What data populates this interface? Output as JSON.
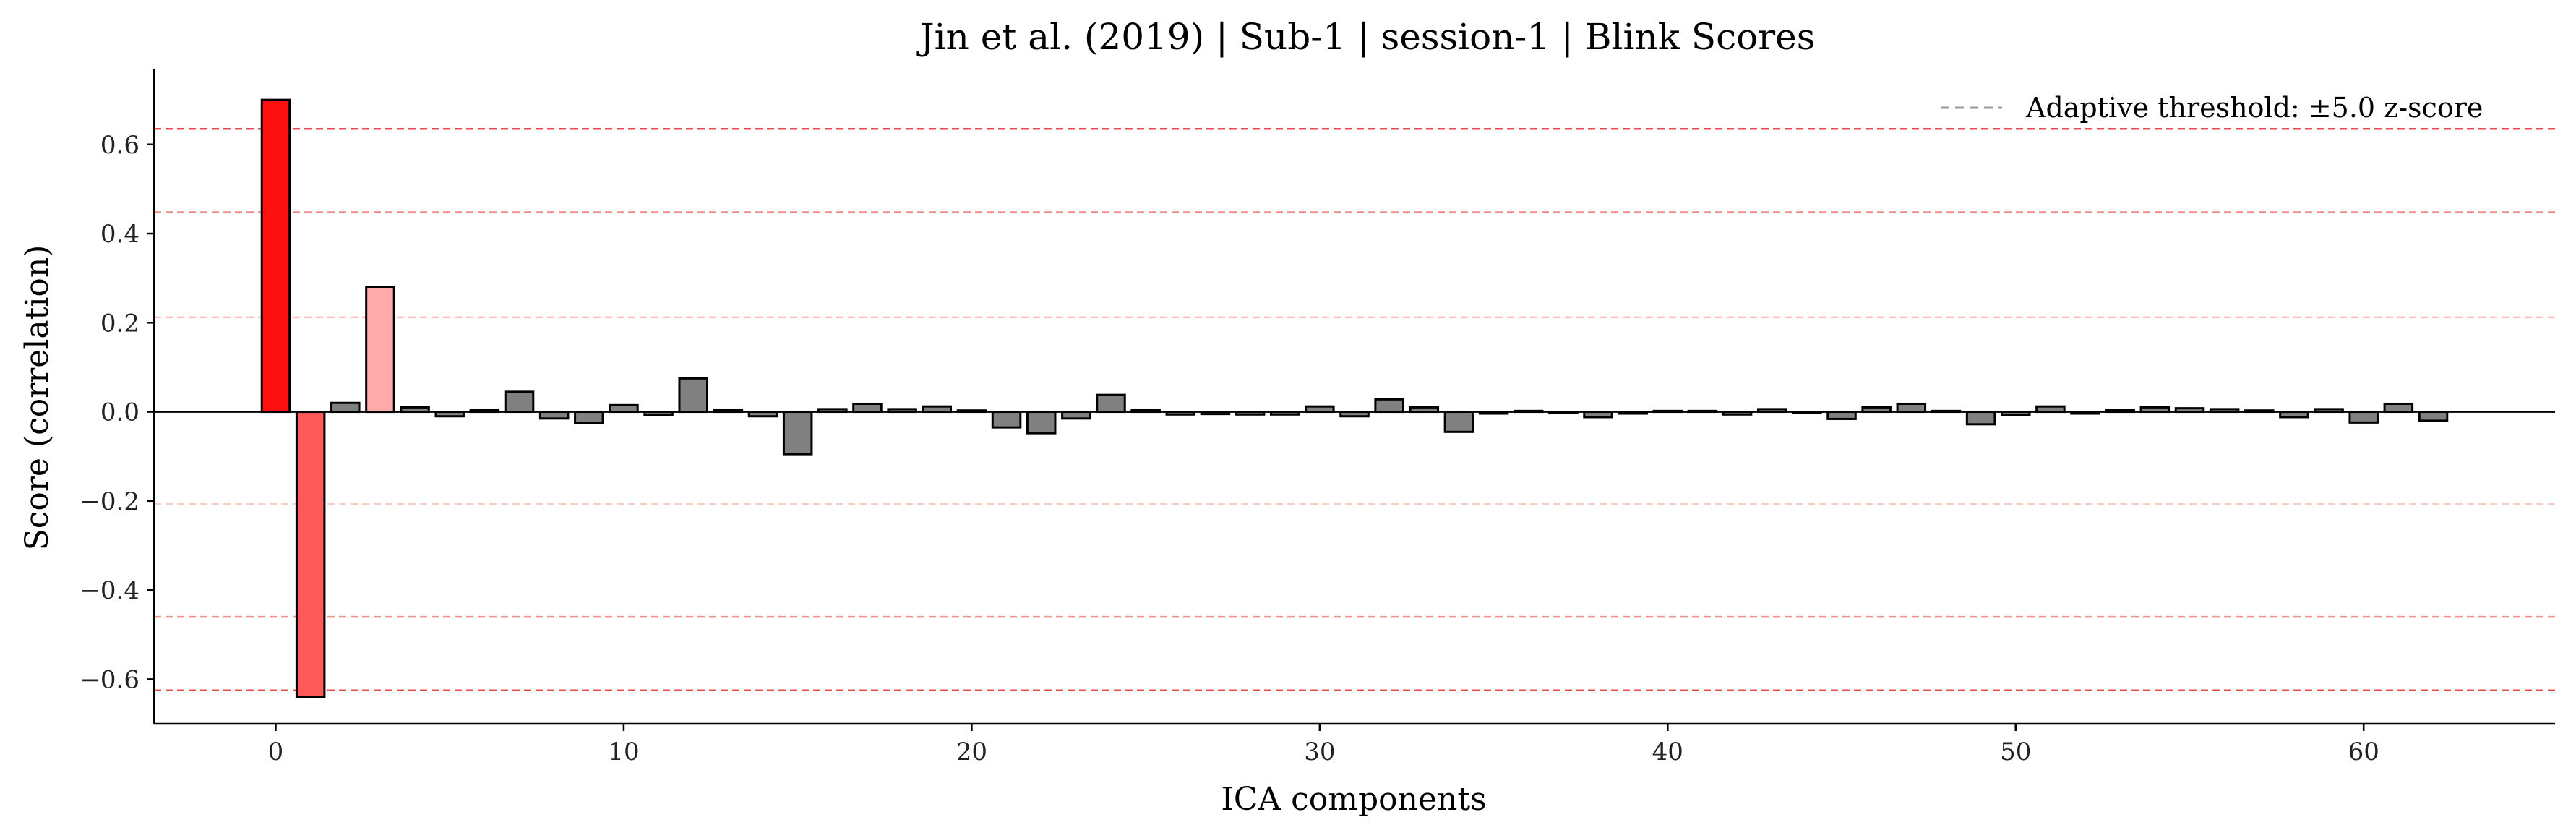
{
  "chart_data": {
    "type": "bar",
    "title": "Jin et al. (2019) | Sub-1 | session-1 | Blink Scores",
    "xlabel": "ICA components",
    "ylabel": "Score (correlation)",
    "xlim": [
      -3.5,
      65.5
    ],
    "ylim": [
      -0.7,
      0.77
    ],
    "xticks": [
      0,
      10,
      20,
      30,
      40,
      50,
      60
    ],
    "yticks": [
      -0.6,
      -0.4,
      -0.2,
      0.0,
      0.2,
      0.4,
      0.6
    ],
    "ytick_labels": [
      "−0.6",
      "−0.4",
      "−0.2",
      "0.0",
      "0.2",
      "0.4",
      "0.6"
    ],
    "x": [
      0,
      1,
      2,
      3,
      4,
      5,
      6,
      7,
      8,
      9,
      10,
      11,
      12,
      13,
      14,
      15,
      16,
      17,
      18,
      19,
      20,
      21,
      22,
      23,
      24,
      25,
      26,
      27,
      28,
      29,
      30,
      31,
      32,
      33,
      34,
      35,
      36,
      37,
      38,
      39,
      40,
      41,
      42,
      43,
      44,
      45,
      46,
      47,
      48,
      49,
      50,
      51,
      52,
      53,
      54,
      55,
      56,
      57,
      58,
      59,
      60,
      61,
      62
    ],
    "values": [
      0.7,
      -0.64,
      0.02,
      0.28,
      0.01,
      -0.01,
      0.005,
      0.045,
      -0.015,
      -0.025,
      0.015,
      -0.008,
      0.075,
      0.005,
      -0.01,
      -0.095,
      0.006,
      0.018,
      0.006,
      0.012,
      0.003,
      -0.035,
      -0.048,
      -0.015,
      0.038,
      0.005,
      -0.006,
      -0.005,
      -0.006,
      -0.006,
      0.012,
      -0.01,
      0.028,
      0.01,
      -0.045,
      -0.004,
      0.002,
      -0.003,
      -0.012,
      -0.004,
      0.002,
      0.002,
      -0.006,
      0.006,
      -0.003,
      -0.016,
      0.01,
      0.018,
      0.002,
      -0.028,
      -0.007,
      0.012,
      -0.004,
      0.004,
      0.01,
      0.008,
      0.006,
      0.003,
      -0.012,
      0.006,
      -0.024,
      0.018,
      -0.02
    ],
    "bar_colors": [
      "#ff1010",
      "#ff5a5a",
      "#808080",
      "#ffaaaa",
      "#808080",
      "#808080",
      "#808080",
      "#808080",
      "#808080",
      "#808080",
      "#808080",
      "#808080",
      "#808080",
      "#808080",
      "#808080",
      "#808080",
      "#808080",
      "#808080",
      "#808080",
      "#808080",
      "#808080",
      "#808080",
      "#808080",
      "#808080",
      "#808080",
      "#808080",
      "#808080",
      "#808080",
      "#808080",
      "#808080",
      "#808080",
      "#808080",
      "#808080",
      "#808080",
      "#808080",
      "#808080",
      "#808080",
      "#808080",
      "#808080",
      "#808080",
      "#808080",
      "#808080",
      "#808080",
      "#808080",
      "#808080",
      "#808080",
      "#808080",
      "#808080",
      "#808080",
      "#808080",
      "#808080",
      "#808080",
      "#808080",
      "#808080",
      "#808080",
      "#808080",
      "#808080",
      "#808080",
      "#808080",
      "#808080",
      "#808080",
      "#808080",
      "#808080"
    ],
    "threshold_lines": [
      {
        "value": 0.635,
        "color": "#e74c4c"
      },
      {
        "value": 0.448,
        "color": "#f08a8a"
      },
      {
        "value": 0.212,
        "color": "#f9c0c0"
      },
      {
        "value": -0.207,
        "color": "#f4cfc8"
      },
      {
        "value": -0.46,
        "color": "#f0908a"
      },
      {
        "value": -0.625,
        "color": "#e74c4c"
      }
    ],
    "legend": {
      "label": "Adaptive threshold: ±5.0 z-score",
      "position": "top-right",
      "line_color": "#999999"
    },
    "grid": false,
    "zero_line": true
  }
}
